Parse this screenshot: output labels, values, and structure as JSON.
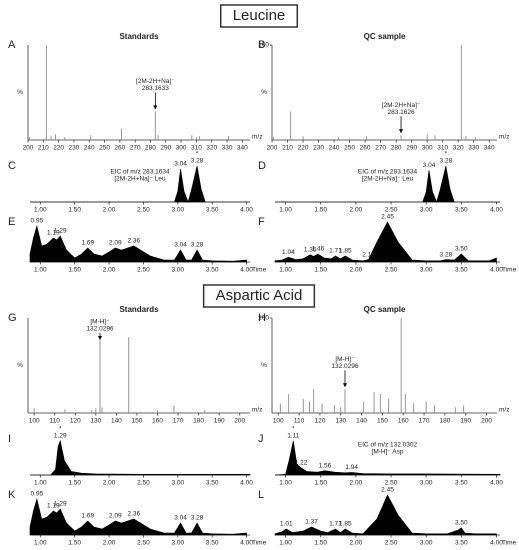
{
  "sections": [
    "Leucine",
    "Aspartic Acid"
  ],
  "chart_data": [
    {
      "type": "bar",
      "panel": "A",
      "title": "Standards",
      "xlabel": "m/z",
      "ylabel": "%",
      "color": "#8a8a8a",
      "x": [
        201,
        212,
        215,
        218,
        224,
        241,
        261,
        283.1633,
        285,
        307,
        310,
        312,
        331
      ],
      "values": [
        3,
        100,
        4,
        6,
        3,
        5,
        12,
        30,
        5,
        5,
        3,
        4,
        4
      ],
      "xlim": [
        200,
        345
      ],
      "ylim": [
        0,
        100
      ],
      "xticks": [
        200,
        210,
        220,
        230,
        240,
        250,
        260,
        270,
        280,
        290,
        300,
        310,
        320,
        330,
        340
      ],
      "annotations": [
        {
          "label": "[2M-2H+Na]⁻",
          "x": 283.1633
        }
      ]
    },
    {
      "type": "bar",
      "panel": "B",
      "title": "QC sample",
      "xlabel": "m/z",
      "ylabel": "%",
      "color": "#8a8a8a",
      "x": [
        201,
        212,
        220,
        243,
        261,
        283.1626,
        300,
        305,
        322,
        325,
        331
      ],
      "values": [
        3,
        30,
        4,
        3,
        4,
        5,
        6,
        5,
        100,
        4,
        3
      ],
      "xlim": [
        200,
        345
      ],
      "ylim": [
        0,
        100
      ],
      "yticks": [
        100
      ],
      "xticks": [
        200,
        210,
        220,
        230,
        240,
        250,
        260,
        270,
        280,
        290,
        300,
        310,
        320,
        330,
        340
      ],
      "annotations": [
        {
          "label": "[2M-2H+Na]⁻",
          "x": 283.1626
        }
      ]
    },
    {
      "type": "area",
      "panel": "C",
      "color": "#000000",
      "x": [
        0.85,
        2.95,
        3.0,
        3.04,
        3.09,
        3.15,
        3.2,
        3.28,
        3.34,
        3.4,
        4.05
      ],
      "values": [
        0,
        0,
        30,
        92,
        30,
        0,
        35,
        100,
        35,
        0,
        0
      ],
      "xlim": [
        0.85,
        4.05
      ],
      "ylim": [
        0,
        100
      ],
      "xticks": [
        {
          "value": 1,
          "label": "1.00"
        },
        {
          "value": 1.5,
          "label": "1.50"
        },
        {
          "value": 2,
          "label": "2.00"
        },
        {
          "value": 2.5,
          "label": "2.50"
        },
        {
          "value": 3,
          "label": "3.00"
        },
        {
          "value": 3.5,
          "label": "3.50"
        },
        {
          "value": 4,
          "label": "4.00"
        }
      ],
      "peaks": [
        3.04,
        3.28
      ],
      "star": {
        "x": 3.28,
        "label": "*"
      },
      "note": [
        "EIC of m/z 283.1634",
        "[2M-2H+Na]⁻ Leu"
      ]
    },
    {
      "type": "area",
      "panel": "D",
      "color": "#000000",
      "x": [
        0.85,
        2.95,
        3.0,
        3.04,
        3.09,
        3.15,
        3.2,
        3.28,
        3.34,
        3.4,
        4.05
      ],
      "values": [
        0,
        0,
        28,
        88,
        28,
        0,
        35,
        100,
        35,
        0,
        0
      ],
      "xlim": [
        0.85,
        4.05
      ],
      "ylim": [
        0,
        100
      ],
      "xticks": [
        {
          "value": 1,
          "label": "1.00"
        },
        {
          "value": 1.5,
          "label": "1.50"
        },
        {
          "value": 2,
          "label": "2.00"
        },
        {
          "value": 2.5,
          "label": "2.50"
        },
        {
          "value": 3,
          "label": "3.00"
        },
        {
          "value": 3.5,
          "label": "3.50"
        },
        {
          "value": 4,
          "label": "4.00"
        }
      ],
      "peaks": [
        3.04,
        3.28
      ],
      "star": {
        "x": 3.28,
        "label": "*"
      },
      "note": [
        "EIC of m/z 283.1634",
        "[2M-2H+Na]⁻ Leu"
      ]
    },
    {
      "type": "area",
      "panel": "E",
      "xlabel": "Time",
      "color": "#000000",
      "x": [
        0.85,
        0.9,
        0.95,
        1.02,
        1.1,
        1.19,
        1.24,
        1.29,
        1.38,
        1.5,
        1.6,
        1.69,
        1.78,
        1.9,
        2.0,
        2.09,
        2.18,
        2.36,
        2.6,
        2.8,
        2.95,
        3.04,
        3.12,
        3.2,
        3.28,
        3.36,
        3.5,
        3.8,
        4.0
      ],
      "values": [
        20,
        60,
        90,
        40,
        45,
        60,
        55,
        65,
        30,
        10,
        20,
        35,
        20,
        15,
        25,
        35,
        30,
        40,
        15,
        5,
        5,
        30,
        5,
        5,
        30,
        5,
        3,
        2,
        5
      ],
      "xlim": [
        0.85,
        4.05
      ],
      "ylim": [
        0,
        100
      ],
      "xticks": [
        {
          "value": 1,
          "label": "1.00"
        },
        {
          "value": 1.5,
          "label": "1.50"
        },
        {
          "value": 2,
          "label": "2.00"
        },
        {
          "value": 2.5,
          "label": "2.50"
        },
        {
          "value": 3,
          "label": "3.00"
        },
        {
          "value": 3.5,
          "label": "3.50"
        },
        {
          "value": 4,
          "label": "4.00"
        }
      ],
      "peaks": [
        0.95,
        1.19,
        1.29,
        1.69,
        2.09,
        2.36,
        3.04,
        3.28
      ]
    },
    {
      "type": "area",
      "panel": "F",
      "xlabel": "Time",
      "color": "#000000",
      "x": [
        0.85,
        0.95,
        1.04,
        1.15,
        1.25,
        1.35,
        1.4,
        1.46,
        1.55,
        1.65,
        1.71,
        1.78,
        1.85,
        1.95,
        2.1,
        2.18,
        2.3,
        2.45,
        2.6,
        2.8,
        3.0,
        3.2,
        3.28,
        3.4,
        3.5,
        3.6,
        3.9,
        4.0
      ],
      "values": [
        3,
        5,
        12,
        6,
        8,
        18,
        14,
        20,
        10,
        8,
        15,
        8,
        15,
        5,
        3,
        6,
        50,
        100,
        50,
        5,
        3,
        3,
        6,
        5,
        20,
        3,
        3,
        10
      ],
      "xlim": [
        0.85,
        4.05
      ],
      "ylim": [
        0,
        100
      ],
      "xticks": [
        {
          "value": 1,
          "label": "1.00"
        },
        {
          "value": 1.5,
          "label": "1.50"
        },
        {
          "value": 2,
          "label": "2.00"
        },
        {
          "value": 2.5,
          "label": "2.50"
        },
        {
          "value": 3,
          "label": "3.00"
        },
        {
          "value": 3.5,
          "label": "3.50"
        },
        {
          "value": 4,
          "label": "4.00"
        }
      ],
      "peaks": [
        1.04,
        1.35,
        1.46,
        1.71,
        1.85,
        2.18,
        2.45,
        3.28,
        {
          "value": 3.5,
          "label": "3.50"
        }
      ]
    },
    {
      "type": "bar",
      "panel": "G",
      "title": "Standards",
      "xlabel": "m/z",
      "ylabel": "%",
      "color": "#8a8a8a",
      "x": [
        100,
        115,
        128,
        130,
        132.0296,
        133,
        146,
        160,
        168,
        183
      ],
      "values": [
        5,
        4,
        3,
        5,
        80,
        6,
        80,
        3,
        8,
        3
      ],
      "xlim": [
        97,
        205
      ],
      "ylim": [
        0,
        100
      ],
      "xticks": [
        100,
        110,
        120,
        130,
        140,
        150,
        160,
        170,
        180,
        190,
        200
      ],
      "annotations": [
        {
          "label": "[M-H]⁻",
          "x": 132.0296
        }
      ]
    },
    {
      "type": "bar",
      "panel": "H",
      "title": "QC sample",
      "xlabel": "m/z",
      "ylabel": "%",
      "color": "#8a8a8a",
      "x": [
        101,
        105,
        112,
        115,
        117,
        121,
        127,
        130,
        132.0296,
        141,
        146,
        149,
        153,
        159,
        161,
        165,
        171,
        175,
        185,
        189
      ],
      "values": [
        10,
        20,
        15,
        12,
        25,
        10,
        8,
        6,
        25,
        12,
        22,
        20,
        15,
        100,
        20,
        10,
        12,
        8,
        6,
        8
      ],
      "xlim": [
        97,
        205
      ],
      "ylim": [
        0,
        100
      ],
      "yticks": [
        100
      ],
      "xticks": [
        100,
        110,
        120,
        130,
        140,
        150,
        160,
        170,
        180,
        190,
        200
      ],
      "annotations": [
        {
          "label": "[M-H]⁻",
          "x": 132.0296
        }
      ]
    },
    {
      "type": "area",
      "panel": "I",
      "color": "#000000",
      "x": [
        0.85,
        1.15,
        1.22,
        1.26,
        1.29,
        1.35,
        1.45,
        1.6,
        1.8,
        2.5,
        4.05
      ],
      "values": [
        0,
        0,
        15,
        80,
        95,
        40,
        10,
        5,
        3,
        2,
        2
      ],
      "xlim": [
        0.85,
        4.05
      ],
      "ylim": [
        0,
        100
      ],
      "xticks": [
        {
          "value": 1,
          "label": "1.00"
        },
        {
          "value": 1.5,
          "label": "1.50"
        },
        {
          "value": 2,
          "label": "2.00"
        },
        {
          "value": 2.5,
          "label": "2.50"
        },
        {
          "value": 3,
          "label": "3.00"
        },
        {
          "value": 3.5,
          "label": "3.50"
        },
        {
          "value": 4,
          "label": "4.00"
        }
      ],
      "peaks": [
        1.29
      ],
      "star": {
        "x": 1.29,
        "label": "*"
      }
    },
    {
      "type": "area",
      "panel": "J",
      "color": "#000000",
      "x": [
        0.85,
        1.0,
        1.05,
        1.11,
        1.16,
        1.22,
        1.3,
        1.45,
        1.56,
        1.7,
        1.85,
        1.94,
        2.1,
        2.5,
        3.0,
        4.05
      ],
      "values": [
        0,
        2,
        40,
        95,
        30,
        20,
        10,
        8,
        12,
        8,
        6,
        7,
        4,
        3,
        3,
        2
      ],
      "xlim": [
        0.85,
        4.05
      ],
      "ylim": [
        0,
        100
      ],
      "xticks": [
        {
          "value": 1,
          "label": "1.00"
        },
        {
          "value": 1.5,
          "label": "1.50"
        },
        {
          "value": 2,
          "label": "2.00"
        },
        {
          "value": 2.5,
          "label": "2.50"
        },
        {
          "value": 3,
          "label": "3.00"
        },
        {
          "value": 3.5,
          "label": "3.50"
        },
        {
          "value": 4,
          "label": "4.00"
        }
      ],
      "peaks": [
        1.11,
        1.22,
        1.56,
        1.94
      ],
      "star": {
        "x": 1.11,
        "label": "*"
      },
      "note": [
        "EIC of m/z 132.0302",
        "[M-H]⁻ Asp"
      ]
    },
    {
      "type": "area",
      "panel": "K",
      "xlabel": "Time",
      "color": "#000000",
      "x": [
        0.85,
        0.9,
        0.95,
        1.02,
        1.1,
        1.19,
        1.24,
        1.29,
        1.38,
        1.5,
        1.6,
        1.69,
        1.78,
        1.9,
        2.0,
        2.09,
        2.18,
        2.36,
        2.6,
        2.8,
        2.95,
        3.04,
        3.12,
        3.2,
        3.28,
        3.36,
        3.5,
        3.8,
        4.0
      ],
      "values": [
        20,
        60,
        90,
        40,
        45,
        60,
        55,
        65,
        30,
        10,
        20,
        35,
        20,
        15,
        25,
        35,
        30,
        40,
        15,
        5,
        5,
        30,
        5,
        5,
        30,
        5,
        3,
        2,
        5
      ],
      "xlim": [
        0.85,
        4.05
      ],
      "ylim": [
        0,
        100
      ],
      "xticks": [
        {
          "value": 1,
          "label": "1.00"
        },
        {
          "value": 1.5,
          "label": "1.50"
        },
        {
          "value": 2,
          "label": "2.00"
        },
        {
          "value": 2.5,
          "label": "2.50"
        },
        {
          "value": 3,
          "label": "3.00"
        },
        {
          "value": 3.5,
          "label": "3.50"
        },
        {
          "value": 4,
          "label": "4.00"
        }
      ],
      "peaks": [
        0.95,
        1.19,
        1.29,
        1.69,
        2.09,
        2.36,
        3.04,
        3.28
      ]
    },
    {
      "type": "area",
      "panel": "L",
      "xlabel": "Time",
      "color": "#000000",
      "x": [
        0.85,
        0.95,
        1.01,
        1.1,
        1.25,
        1.37,
        1.5,
        1.6,
        1.71,
        1.78,
        1.85,
        1.95,
        2.1,
        2.3,
        2.45,
        2.6,
        2.8,
        3.0,
        3.3,
        3.45,
        3.5,
        3.55,
        3.7,
        4.0
      ],
      "values": [
        3,
        8,
        15,
        6,
        10,
        20,
        10,
        6,
        15,
        6,
        15,
        5,
        3,
        40,
        100,
        50,
        5,
        3,
        3,
        12,
        18,
        5,
        3,
        3
      ],
      "xlim": [
        0.85,
        4.05
      ],
      "ylim": [
        0,
        100
      ],
      "xticks": [
        {
          "value": 1,
          "label": "1.00"
        },
        {
          "value": 1.5,
          "label": "1.50"
        },
        {
          "value": 2,
          "label": "2.00"
        },
        {
          "value": 2.5,
          "label": "2.50"
        },
        {
          "value": 3,
          "label": "3.00"
        },
        {
          "value": 3.5,
          "label": "3.50"
        },
        {
          "value": 4,
          "label": "4.00"
        }
      ],
      "peaks": [
        1.01,
        1.37,
        1.71,
        1.85,
        2.45,
        {
          "value": 3.5,
          "label": "3.50"
        }
      ]
    }
  ]
}
